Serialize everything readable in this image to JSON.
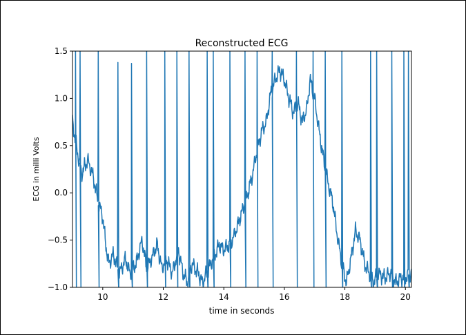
{
  "chart_data": {
    "type": "line",
    "title": "Reconstructed ECG",
    "xlabel": "time in seconds",
    "ylabel": "ECG in milli Volts",
    "xlim": [
      9.0,
      20.2
    ],
    "ylim": [
      -1.0,
      1.5
    ],
    "xticks": [
      10,
      12,
      14,
      16,
      18,
      20
    ],
    "xtick_labels": [
      "10",
      "12",
      "14",
      "16",
      "18",
      "20"
    ],
    "yticks": [
      -1.0,
      -0.5,
      0.0,
      0.5,
      1.0,
      1.5
    ],
    "ytick_labels": [
      "−1.0",
      "−0.5",
      "0.0",
      "0.5",
      "1.0",
      "1.5"
    ],
    "grid": false,
    "line_color": "#1f77b4",
    "baseline": [
      [
        9.0,
        0.75
      ],
      [
        9.15,
        0.45
      ],
      [
        9.3,
        0.2
      ],
      [
        9.5,
        0.35
      ],
      [
        9.7,
        0.15
      ],
      [
        9.85,
        -0.1
      ],
      [
        10.0,
        -0.25
      ],
      [
        10.1,
        -0.55
      ],
      [
        10.2,
        -0.75
      ],
      [
        10.35,
        -0.65
      ],
      [
        10.55,
        -0.85
      ],
      [
        10.75,
        -0.7
      ],
      [
        10.9,
        -0.85
      ],
      [
        11.1,
        -0.75
      ],
      [
        11.3,
        -0.5
      ],
      [
        11.45,
        -0.8
      ],
      [
        11.6,
        -0.7
      ],
      [
        11.8,
        -0.55
      ],
      [
        11.95,
        -0.8
      ],
      [
        12.1,
        -0.7
      ],
      [
        12.3,
        -0.85
      ],
      [
        12.5,
        -0.6
      ],
      [
        12.65,
        -0.85
      ],
      [
        12.8,
        -0.95
      ],
      [
        12.95,
        -0.75
      ],
      [
        13.15,
        -0.85
      ],
      [
        13.3,
        -0.95
      ],
      [
        13.5,
        -0.8
      ],
      [
        13.65,
        -0.7
      ],
      [
        13.85,
        -0.55
      ],
      [
        14.0,
        -0.6
      ],
      [
        14.2,
        -0.55
      ],
      [
        14.35,
        -0.45
      ],
      [
        14.5,
        -0.3
      ],
      [
        14.65,
        -0.15
      ],
      [
        14.8,
        0.0
      ],
      [
        14.95,
        0.2
      ],
      [
        15.1,
        0.45
      ],
      [
        15.25,
        0.65
      ],
      [
        15.4,
        0.75
      ],
      [
        15.55,
        1.05
      ],
      [
        15.7,
        1.2
      ],
      [
        15.85,
        1.3
      ],
      [
        16.0,
        1.2
      ],
      [
        16.15,
        1.0
      ],
      [
        16.3,
        0.85
      ],
      [
        16.45,
        0.95
      ],
      [
        16.6,
        0.75
      ],
      [
        16.75,
        0.9
      ],
      [
        16.85,
        1.2
      ],
      [
        17.0,
        1.0
      ],
      [
        17.15,
        0.65
      ],
      [
        17.3,
        0.35
      ],
      [
        17.45,
        0.1
      ],
      [
        17.6,
        -0.1
      ],
      [
        17.75,
        -0.45
      ],
      [
        17.9,
        -0.75
      ],
      [
        18.05,
        -0.95
      ],
      [
        18.2,
        -0.7
      ],
      [
        18.35,
        -0.4
      ],
      [
        18.5,
        -0.5
      ],
      [
        18.65,
        -0.75
      ],
      [
        18.8,
        -0.85
      ],
      [
        18.95,
        -0.95
      ],
      [
        19.1,
        -0.85
      ],
      [
        19.3,
        -0.9
      ],
      [
        19.5,
        -0.85
      ],
      [
        19.7,
        -0.95
      ],
      [
        19.85,
        -0.9
      ],
      [
        20.0,
        -0.9
      ],
      [
        20.2,
        -0.85
      ]
    ],
    "spikes": [
      {
        "x": 9.1,
        "peak": 1.5
      },
      {
        "x": 9.25,
        "peak": 1.5
      },
      {
        "x": 9.85,
        "peak": 1.5
      },
      {
        "x": 10.5,
        "peak": 1.38
      },
      {
        "x": 10.95,
        "peak": 1.37
      },
      {
        "x": 11.45,
        "peak": 1.5
      },
      {
        "x": 12.05,
        "peak": 1.5
      },
      {
        "x": 12.45,
        "peak": 1.5
      },
      {
        "x": 12.85,
        "peak": 1.5
      },
      {
        "x": 13.45,
        "peak": 1.5
      },
      {
        "x": 13.65,
        "peak": 1.5
      },
      {
        "x": 14.2,
        "peak": 1.5
      },
      {
        "x": 14.7,
        "peak": 1.5
      },
      {
        "x": 15.1,
        "peak": 1.5
      },
      {
        "x": 15.6,
        "peak": 1.5
      },
      {
        "x": 16.4,
        "peak": 1.5
      },
      {
        "x": 16.95,
        "peak": 1.5
      },
      {
        "x": 17.35,
        "peak": 1.5
      },
      {
        "x": 17.9,
        "peak": 1.5
      },
      {
        "x": 18.85,
        "peak": 1.5
      },
      {
        "x": 19.05,
        "peak": 1.5
      },
      {
        "x": 19.55,
        "peak": 1.5
      },
      {
        "x": 19.95,
        "peak": 1.5
      },
      {
        "x": 20.1,
        "peak": 1.5
      }
    ]
  }
}
